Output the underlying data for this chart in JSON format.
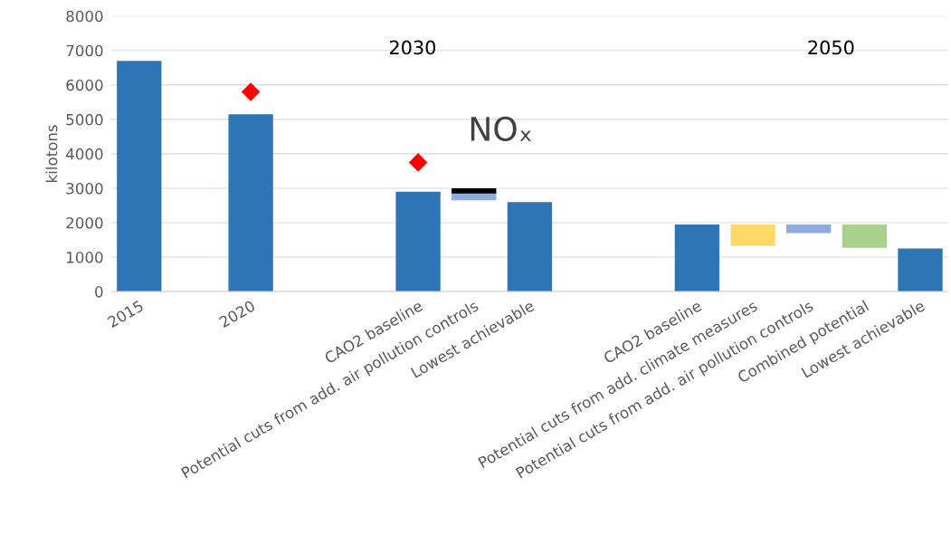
{
  "chart_data": {
    "type": "bar",
    "ylabel": "kilotons",
    "categories": [
      "2015",
      null,
      "2020",
      null,
      null,
      "CAO2 baseline",
      "Potential cuts from add. air pollution controls",
      "Lowest achievable",
      null,
      null,
      "CAO2 baseline",
      "Potential cuts from add. climate measures",
      "Potential cuts from add. air pollution controls",
      "Combined potential",
      "Lowest achievable"
    ],
    "series": [
      {
        "color": "#2e75b6",
        "values": [
          6700,
          null,
          5150,
          null,
          null,
          2900,
          null,
          2600,
          null,
          null,
          1950,
          null,
          null,
          null,
          1250
        ]
      },
      {
        "colors": [
          null,
          null,
          null,
          null,
          null,
          null,
          "#8faadc",
          null,
          null,
          null,
          null,
          "#ffd966",
          "#8faadc",
          "#a9d18e",
          null
        ],
        "base": [
          null,
          null,
          null,
          null,
          null,
          null,
          2650,
          null,
          null,
          null,
          null,
          1330,
          1700,
          1270,
          null
        ],
        "values": [
          null,
          null,
          null,
          null,
          null,
          null,
          250,
          null,
          null,
          null,
          null,
          620,
          250,
          680,
          null
        ]
      },
      {
        "color": "#000000",
        "base": [
          null,
          null,
          null,
          null,
          null,
          null,
          2850,
          null,
          null,
          null,
          null,
          null,
          null,
          null,
          null
        ],
        "values": [
          null,
          null,
          null,
          null,
          null,
          null,
          150,
          null,
          null,
          null,
          null,
          null,
          null,
          null,
          null
        ]
      },
      {
        "type": "scatter",
        "marker": "diamond",
        "color": "#ff0000",
        "values": [
          null,
          null,
          5800,
          null,
          null,
          3750,
          null,
          null,
          null,
          null,
          null,
          null,
          null,
          null,
          null
        ]
      }
    ],
    "annotations": [
      "2030",
      "2050",
      "NOₓ"
    ],
    "ylim": [
      0,
      8000
    ],
    "yticks": [
      0,
      1000,
      2000,
      3000,
      4000,
      5000,
      6000,
      7000,
      8000
    ],
    "grid": "y",
    "legend": false
  }
}
